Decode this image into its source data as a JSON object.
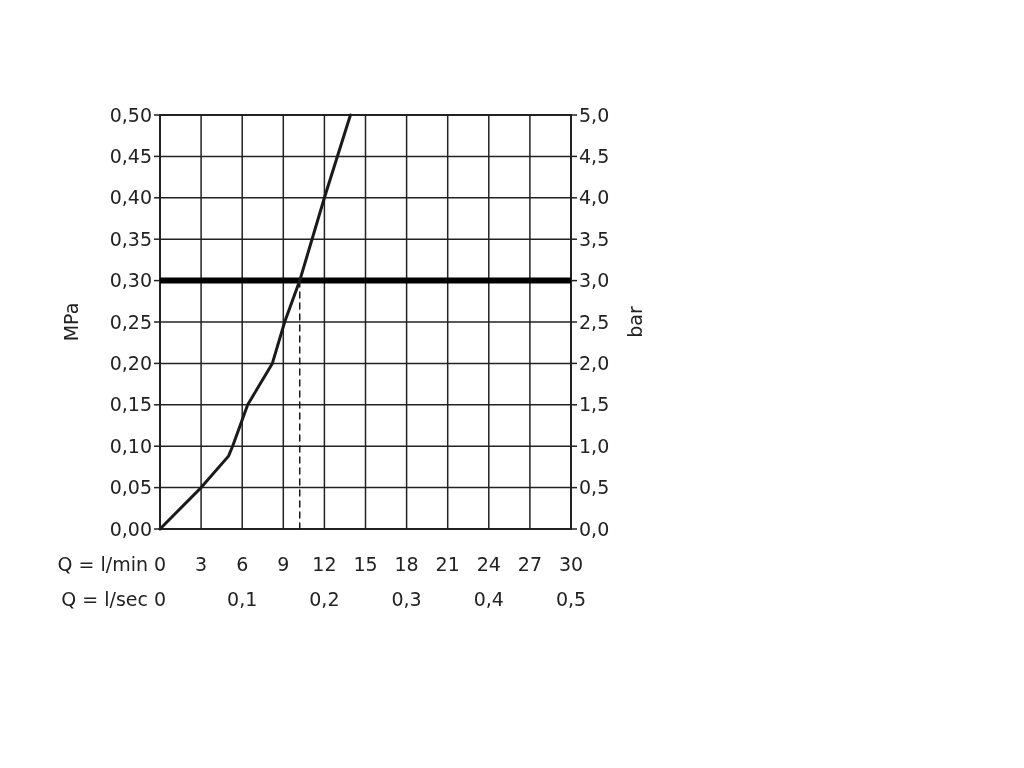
{
  "chart_data": {
    "type": "line",
    "xlabel": "Q = l/min",
    "x2label": "Q = l/sec",
    "ylabel": "MPa",
    "y2label": "bar",
    "xlim": [
      0,
      30
    ],
    "xticks": [
      0,
      3,
      6,
      9,
      12,
      15,
      18,
      21,
      24,
      27,
      30
    ],
    "x2lim": [
      0,
      0.5
    ],
    "x2ticks": [
      {
        "value": 0,
        "label": "0"
      },
      {
        "value": 0.1,
        "label": "0,1"
      },
      {
        "value": 0.2,
        "label": "0,2"
      },
      {
        "value": 0.3,
        "label": "0,3"
      },
      {
        "value": 0.4,
        "label": "0,4"
      },
      {
        "value": 0.5,
        "label": "0,5"
      }
    ],
    "ylim": [
      0,
      0.5
    ],
    "yticks": [
      {
        "value": 0,
        "label": "0,00"
      },
      {
        "value": 0.05,
        "label": "0,05"
      },
      {
        "value": 0.1,
        "label": "0,10"
      },
      {
        "value": 0.15,
        "label": "0,15"
      },
      {
        "value": 0.2,
        "label": "0,20"
      },
      {
        "value": 0.25,
        "label": "0,25"
      },
      {
        "value": 0.3,
        "label": "0,30"
      },
      {
        "value": 0.35,
        "label": "0,35"
      },
      {
        "value": 0.4,
        "label": "0,40"
      },
      {
        "value": 0.45,
        "label": "0,45"
      },
      {
        "value": 0.5,
        "label": "0,50"
      }
    ],
    "y2lim": [
      0,
      5
    ],
    "y2ticks": [
      {
        "value": 0,
        "label": "0,0"
      },
      {
        "value": 0.5,
        "label": "0,5"
      },
      {
        "value": 1,
        "label": "1,0"
      },
      {
        "value": 1.5,
        "label": "1,5"
      },
      {
        "value": 2,
        "label": "2,0"
      },
      {
        "value": 2.5,
        "label": "2,5"
      },
      {
        "value": 3,
        "label": "3,0"
      },
      {
        "value": 3.5,
        "label": "3,5"
      },
      {
        "value": 4,
        "label": "4,0"
      },
      {
        "value": 4.5,
        "label": "4,5"
      },
      {
        "value": 5,
        "label": "5,0"
      }
    ],
    "grid": true,
    "ref_lines": [
      {
        "axis": "y",
        "value": 0.3,
        "color": "#000000"
      }
    ],
    "series": [
      {
        "color": "#1a1a1a",
        "line_style": "solid",
        "x": [
          0,
          3,
          5,
          5.3,
          6.4,
          8.2,
          9.1,
          10.2,
          12,
          13.9
        ],
        "values": [
          0,
          0.05,
          0.088,
          0.1,
          0.15,
          0.2,
          0.25,
          0.3,
          0.4,
          0.5
        ]
      },
      {
        "color": "#1a1a1a",
        "line_style": "dashed",
        "x": [
          10.2,
          10.2
        ],
        "values": [
          0,
          0.3
        ]
      }
    ]
  }
}
